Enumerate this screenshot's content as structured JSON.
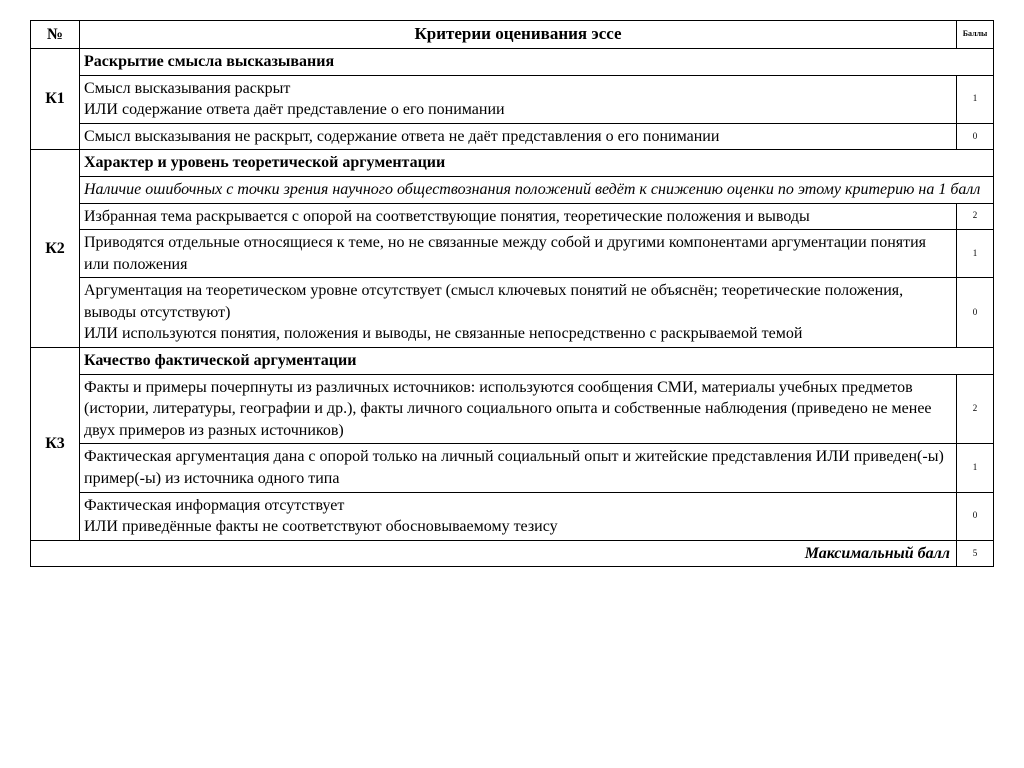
{
  "colors": {
    "background": "#ffffff",
    "text": "#000000",
    "border": "#000000"
  },
  "typography": {
    "body_font": "Times New Roman",
    "body_size_pt": 12,
    "header_size_pt": 13,
    "points_size_pt": 7
  },
  "header": {
    "num": "№",
    "criteria": "Критерии оценивания эссе",
    "points": "Баллы"
  },
  "k1": {
    "code": "К1",
    "title": "Раскрытие смысла высказывания",
    "rows": [
      {
        "text": "Смысл высказывания раскрыт\nИЛИ содержание ответа даёт представление о его понимании",
        "points": "1"
      },
      {
        "text": "Смысл высказывания не раскрыт, содержание ответа не даёт представления о его понимании",
        "points": "0"
      }
    ]
  },
  "k2": {
    "code": "К2",
    "title": "Характер и уровень теоретической аргументации",
    "note": "Наличие ошибочных с точки зрения научного обществознания положений ведёт к снижению оценки по этому критерию на 1 балл",
    "rows": [
      {
        "text": "Избранная тема раскрывается с опорой на соответствующие понятия, теоретические положения и выводы",
        "points": "2"
      },
      {
        "text": "Приводятся отдельные относящиеся к теме, но не связанные между собой и другими компонентами аргументации понятия или положения",
        "points": "1"
      },
      {
        "text": "Аргументация на теоретическом уровне отсутствует (смысл ключевых понятий не объяснён; теоретические положения, выводы отсутствуют)\nИЛИ используются понятия, положения и выводы, не связанные непосредственно с раскрываемой темой",
        "points": "0"
      }
    ]
  },
  "k3": {
    "code": "К3",
    "title": "Качество фактической аргументации",
    "rows": [
      {
        "text": "Факты и примеры почерпнуты из различных источников: используются сообщения СМИ, материалы учебных предметов (истории, литературы, географии и др.), факты личного социального опыта и собственные наблюдения (приведено не менее двух примеров из разных источников)",
        "points": "2"
      },
      {
        "text": "Фактическая аргументация дана с опорой только на личный социальный опыт и житейские представления    ИЛИ приведен(-ы) пример(-ы) из источника одного типа",
        "points": "1"
      },
      {
        "text": "Фактическая информация отсутствует\nИЛИ приведённые факты не соответствуют обосновываемому тезису",
        "points": "0"
      }
    ]
  },
  "max": {
    "label": "Максимальный балл",
    "points": "5"
  }
}
